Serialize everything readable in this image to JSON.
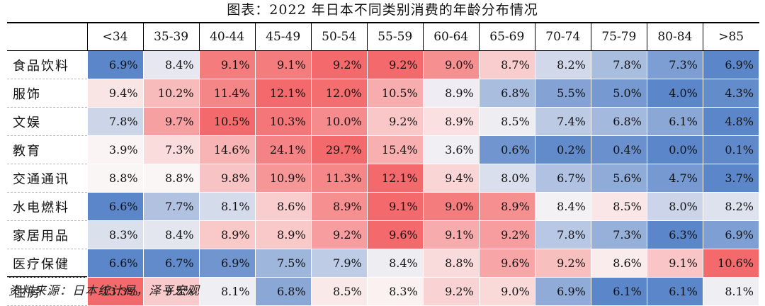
{
  "title": "图表：2022 年日本不同类别消费的年龄分布情况",
  "source": "资料来源：日本统计局，泽平宏观",
  "chart_data": {
    "type": "heatmap",
    "title": "图表：2022 年日本不同类别消费的年龄分布情况",
    "x": [
      "<34",
      "35-39",
      "40-44",
      "45-49",
      "50-54",
      "55-59",
      "60-64",
      "65-69",
      "70-74",
      "75-79",
      "80-84",
      ">85"
    ],
    "y": [
      "食品饮料",
      "服饰",
      "文娱",
      "教育",
      "交通通讯",
      "水电燃料",
      "家居用品",
      "医疗保健",
      "住房"
    ],
    "values": [
      [
        6.9,
        8.4,
        9.1,
        9.1,
        9.2,
        9.2,
        9.0,
        8.7,
        8.2,
        7.8,
        7.3,
        6.9
      ],
      [
        9.4,
        10.2,
        11.4,
        12.1,
        12.0,
        10.5,
        8.9,
        6.8,
        5.5,
        5.0,
        4.0,
        4.3
      ],
      [
        7.8,
        9.7,
        10.5,
        10.3,
        10.0,
        9.2,
        8.9,
        8.5,
        7.4,
        6.8,
        6.1,
        4.8
      ],
      [
        3.9,
        7.3,
        14.6,
        24.1,
        29.7,
        15.4,
        3.6,
        0.6,
        0.2,
        0.4,
        0.0,
        0.1
      ],
      [
        8.8,
        8.8,
        9.8,
        10.9,
        11.3,
        12.1,
        9.4,
        8.0,
        6.7,
        5.6,
        4.7,
        3.7
      ],
      [
        6.6,
        7.7,
        8.1,
        8.6,
        8.9,
        9.1,
        9.0,
        8.9,
        8.4,
        8.5,
        8.0,
        8.2
      ],
      [
        8.3,
        8.4,
        8.9,
        8.9,
        9.2,
        9.6,
        9.1,
        9.2,
        7.8,
        7.3,
        6.3,
        6.9
      ],
      [
        6.6,
        6.7,
        6.9,
        7.5,
        7.9,
        8.4,
        8.8,
        9.6,
        9.2,
        8.6,
        9.1,
        10.6
      ],
      [
        13.3,
        9.5,
        8.1,
        6.8,
        8.5,
        8.3,
        9.2,
        9.0,
        6.9,
        6.1,
        6.1,
        8.1
      ]
    ],
    "value_suffix": "%",
    "color_scale": "per-row diverging: blue = row minimum, white = row median, red = row maximum",
    "colors": {
      "low": "#5b86c9",
      "mid": "#fbf6f6",
      "high": "#f4696b"
    }
  }
}
